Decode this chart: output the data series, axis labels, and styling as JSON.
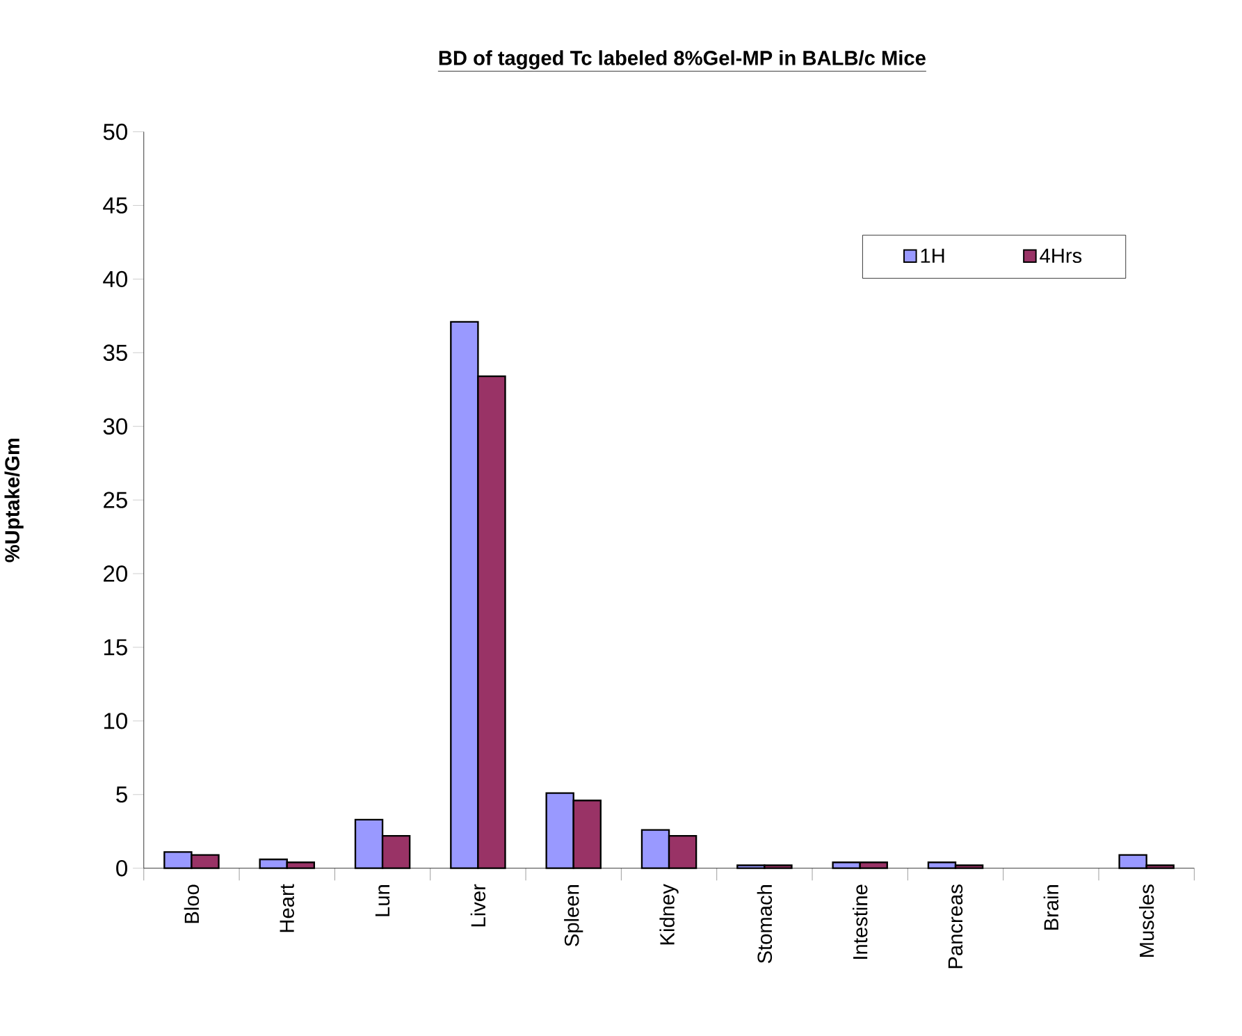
{
  "chart_data": {
    "type": "bar",
    "title": "BD of tagged Tc labeled 8%Gel-MP in BALB/c Mice",
    "ylabel": "%Uptake/Gm",
    "categories": [
      "Bloo",
      "Heart",
      "Lun",
      "Liver",
      "Spleen",
      "Kidney",
      "Stomach",
      "Intestine",
      "Pancreas",
      "Brain",
      "Muscles"
    ],
    "series": [
      {
        "name": "1H",
        "color": "#9999ff",
        "values": [
          1.1,
          0.6,
          3.3,
          37.1,
          5.1,
          2.6,
          0.2,
          0.4,
          0.4,
          0,
          0.9
        ]
      },
      {
        "name": "4Hrs",
        "color": "#993366",
        "values": [
          0.9,
          0.4,
          2.2,
          33.4,
          4.6,
          2.2,
          0.2,
          0.4,
          0.2,
          0,
          0.2
        ]
      }
    ],
    "ylim": [
      0,
      50
    ],
    "yticks": [
      0,
      5,
      10,
      15,
      20,
      25,
      30,
      35,
      40,
      45,
      50
    ],
    "grid": false,
    "legend": "top right"
  }
}
